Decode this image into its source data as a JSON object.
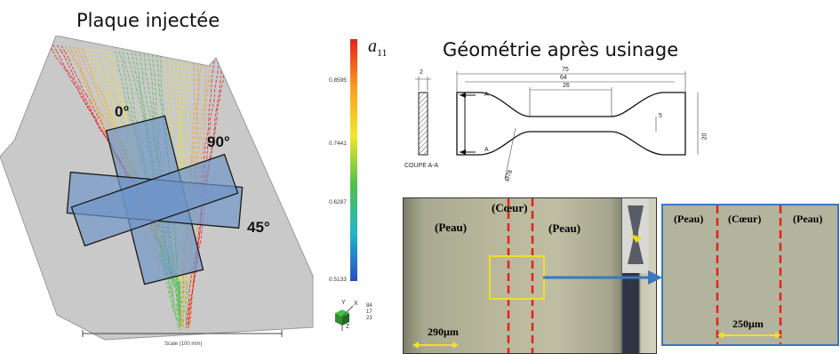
{
  "left_panel": {
    "title": "Plaque injectée",
    "angles": [
      "0°",
      "90°",
      "45°"
    ],
    "scale_label": "Scale (100 mm)",
    "axes": {
      "y": "Y",
      "x": "X",
      "z": "Z",
      "values": [
        "84",
        "17",
        "23"
      ]
    }
  },
  "colorbar": {
    "symbol": "a",
    "subscript": "11",
    "ticks": [
      "0.8595",
      "0.7441",
      "0.6287",
      "0.5133"
    ],
    "colors": [
      "#e8201c",
      "#f4a11f",
      "#f1e62b",
      "#52c04a",
      "#22b6c9",
      "#2a4fbf"
    ]
  },
  "right_panel": {
    "title": "Géométrie après usinage",
    "drawing": {
      "dims": [
        "2",
        "75",
        "64",
        "26",
        "5",
        "20",
        "Ø78"
      ],
      "section_letter": "A",
      "section_label": "COUPE A-A"
    },
    "micro_left": {
      "labels": [
        "(Cœur)",
        "(Peau)",
        "(Peau)"
      ],
      "scale": "290µm"
    },
    "micro_right": {
      "labels": [
        "(Peau)",
        "(Cœur)",
        "(Peau)"
      ],
      "scale": "250µm"
    }
  }
}
